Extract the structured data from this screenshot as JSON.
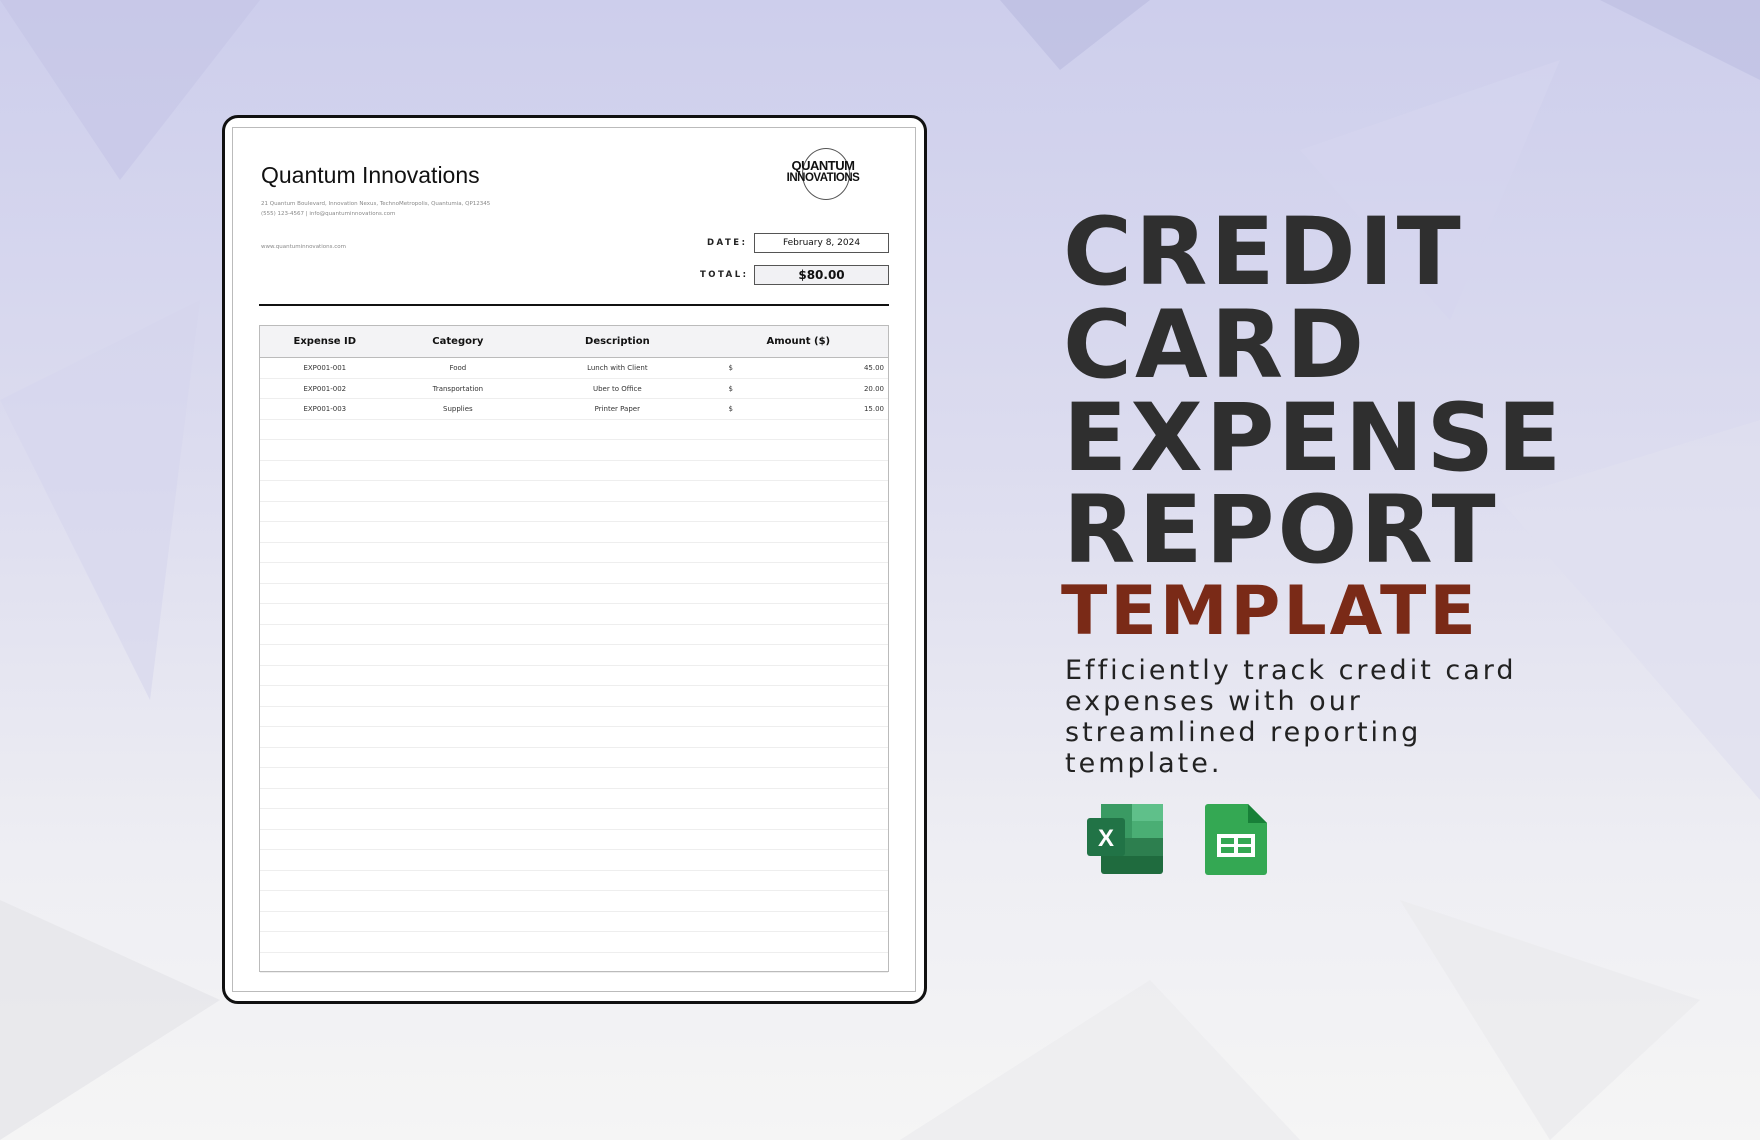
{
  "document": {
    "company": "Quantum Innovations",
    "address": "21 Quantum Boulevard, Innovation Nexus, TechnoMetropolis, Quantumia, QP12345",
    "contact": "(555) 123-4567 | info@quantuminnovations.com",
    "website": "www.quantuminnovations.com",
    "logo_text": [
      "QUANTUM",
      "INNOVATIONS"
    ],
    "date_label": "DATE:",
    "date_value": "February 8, 2024",
    "total_label": "TOTAL:",
    "total_value": "$80.00",
    "table": {
      "headers": [
        "Expense ID",
        "Category",
        "Description",
        "Amount ($)"
      ],
      "rows": [
        {
          "id": "EXP001-001",
          "category": "Food",
          "description": "Lunch with Client",
          "currency": "$",
          "amount": "45.00"
        },
        {
          "id": "EXP001-002",
          "category": "Transportation",
          "description": "Uber to Office",
          "currency": "$",
          "amount": "20.00"
        },
        {
          "id": "EXP001-003",
          "category": "Supplies",
          "description": "Printer Paper",
          "currency": "$",
          "amount": "15.00"
        }
      ]
    }
  },
  "headline": {
    "lines": [
      "CREDIT",
      "CARD",
      "EXPENSE",
      "REPORT"
    ],
    "accent": "TEMPLATE",
    "accent_color": "#7a2a17"
  },
  "description": "Efficiently track credit card expenses with our streamlined reporting template.",
  "icons": [
    "excel-icon",
    "google-sheets-icon"
  ]
}
